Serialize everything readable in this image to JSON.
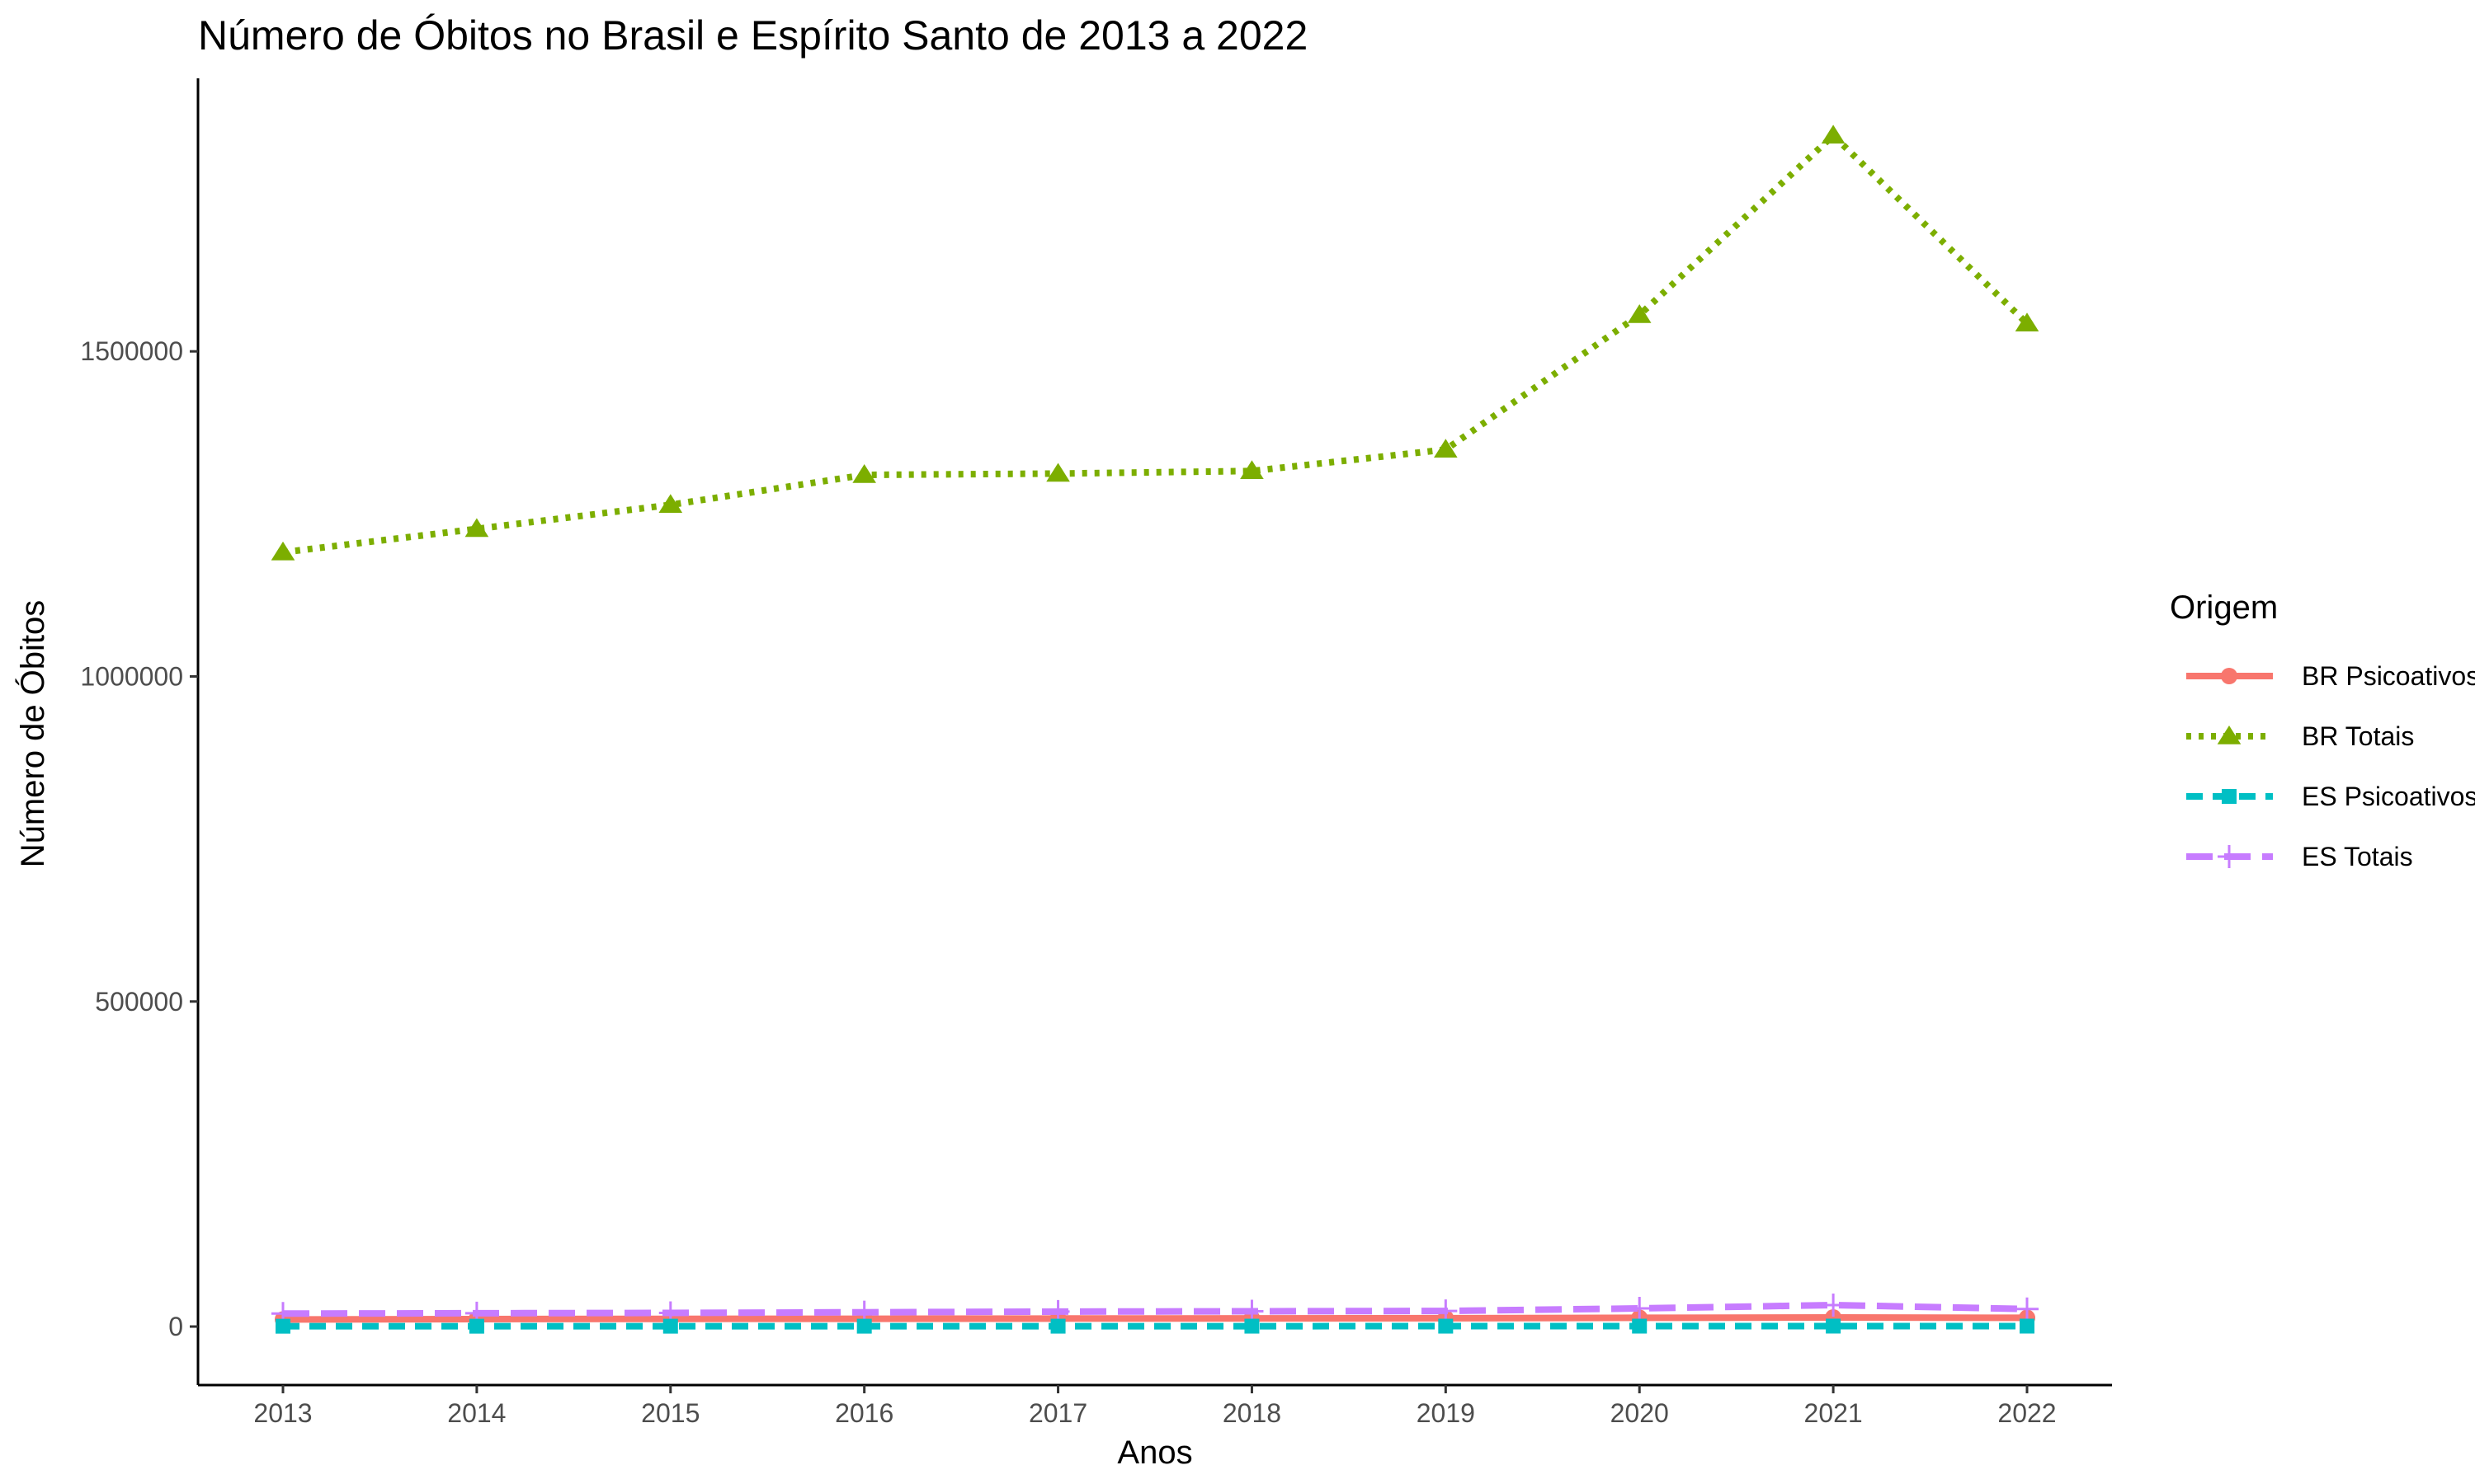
{
  "chart_data": {
    "type": "line",
    "title": "Número de Óbitos no Brasil e Espírito Santo de 2013 a 2022",
    "xlabel": "Anos",
    "ylabel": "Número de Óbitos",
    "x": [
      2013,
      2014,
      2015,
      2016,
      2017,
      2018,
      2019,
      2020,
      2021,
      2022
    ],
    "x_tick_labels": [
      "2013",
      "2014",
      "2015",
      "2016",
      "2017",
      "2018",
      "2019",
      "2020",
      "2021",
      "2022"
    ],
    "y_ticks": [
      0,
      500000,
      1000000,
      1500000
    ],
    "y_tick_labels": [
      "0",
      "500000",
      "1000000",
      "1500000"
    ],
    "ylim": [
      -90000,
      1920000
    ],
    "grid": false,
    "legend": {
      "title": "Origem",
      "position": "right",
      "entries": [
        "BR Psicoativos",
        "BR Totais",
        "ES Psicoativos",
        "ES Totais"
      ]
    },
    "series": [
      {
        "name": "BR Psicoativos",
        "color": "#F8766D",
        "line": "solid",
        "marker": "circle",
        "values": [
          11000,
          11500,
          11800,
          12000,
          12300,
          12600,
          12800,
          13500,
          14000,
          13500
        ]
      },
      {
        "name": "BR Totais",
        "color": "#7CAE00",
        "line": "dotted",
        "marker": "triangle",
        "values": [
          1191000,
          1227000,
          1264000,
          1310000,
          1312000,
          1316000,
          1349000,
          1556000,
          1832000,
          1543000
        ]
      },
      {
        "name": "ES Psicoativos",
        "color": "#00BFC4",
        "line": "dashed",
        "marker": "square",
        "values": [
          500,
          520,
          540,
          560,
          580,
          600,
          620,
          650,
          700,
          680
        ]
      },
      {
        "name": "ES Totais",
        "color": "#C77CFF",
        "line": "longdash",
        "marker": "plus",
        "values": [
          20000,
          20500,
          21000,
          22000,
          23000,
          23500,
          24000,
          28000,
          33000,
          27000
        ]
      }
    ]
  }
}
